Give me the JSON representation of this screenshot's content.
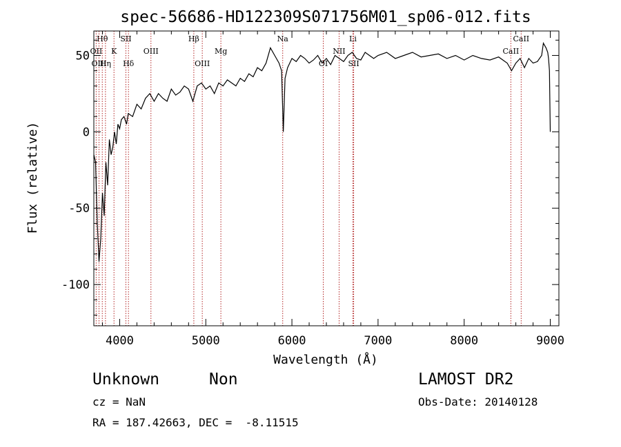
{
  "chart_data": {
    "type": "line",
    "title": "spec-56686-HD122309S071756M01_sp06-012.fits",
    "xlabel": "Wavelength (Å)",
    "ylabel": "Flux (relative)",
    "xlim": [
      3700,
      9100
    ],
    "ylim": [
      -127,
      66
    ],
    "x_ticks": [
      4000,
      5000,
      6000,
      7000,
      8000,
      9000
    ],
    "y_ticks": [
      -100,
      -50,
      0,
      50
    ],
    "grid": false,
    "spectrum": {
      "x": [
        3700,
        3720,
        3740,
        3760,
        3780,
        3800,
        3820,
        3840,
        3860,
        3880,
        3900,
        3920,
        3940,
        3960,
        3980,
        4000,
        4020,
        4050,
        4080,
        4100,
        4150,
        4200,
        4250,
        4300,
        4350,
        4400,
        4450,
        4500,
        4550,
        4600,
        4650,
        4700,
        4750,
        4800,
        4850,
        4900,
        4950,
        5000,
        5050,
        5100,
        5150,
        5200,
        5250,
        5300,
        5350,
        5400,
        5450,
        5500,
        5550,
        5600,
        5650,
        5700,
        5750,
        5800,
        5850,
        5880,
        5900,
        5920,
        5950,
        6000,
        6050,
        6100,
        6150,
        6200,
        6250,
        6300,
        6350,
        6400,
        6450,
        6500,
        6550,
        6600,
        6650,
        6700,
        6750,
        6800,
        6850,
        6900,
        6950,
        7000,
        7100,
        7200,
        7300,
        7400,
        7500,
        7600,
        7700,
        7800,
        7900,
        8000,
        8100,
        8200,
        8300,
        8400,
        8500,
        8550,
        8600,
        8650,
        8700,
        8750,
        8800,
        8850,
        8900,
        8920,
        8950,
        8970,
        8980,
        8990,
        9000
      ],
      "y": [
        -15,
        -20,
        -60,
        -85,
        -70,
        -40,
        -55,
        -20,
        -35,
        -5,
        -15,
        -10,
        0,
        -8,
        5,
        2,
        8,
        10,
        5,
        12,
        10,
        18,
        15,
        22,
        25,
        20,
        25,
        22,
        20,
        28,
        24,
        26,
        30,
        28,
        20,
        30,
        32,
        28,
        30,
        25,
        32,
        30,
        34,
        32,
        30,
        35,
        33,
        38,
        36,
        42,
        40,
        45,
        55,
        50,
        45,
        40,
        0,
        35,
        42,
        48,
        46,
        50,
        48,
        45,
        47,
        50,
        45,
        48,
        44,
        50,
        48,
        46,
        50,
        52,
        48,
        47,
        52,
        50,
        48,
        50,
        52,
        48,
        50,
        52,
        49,
        50,
        51,
        48,
        50,
        47,
        50,
        48,
        47,
        49,
        45,
        40,
        45,
        48,
        42,
        48,
        45,
        46,
        50,
        58,
        55,
        52,
        48,
        40,
        0
      ]
    },
    "lines": [
      {
        "label": "Hθ",
        "x": 3798,
        "row": 0
      },
      {
        "label": "OII",
        "x": 3727,
        "row": 1
      },
      {
        "label": "OIII",
        "x": 3760,
        "row": 2
      },
      {
        "label": "Hη",
        "x": 3835,
        "row": 2
      },
      {
        "label": "K",
        "x": 3934,
        "row": 1
      },
      {
        "label": "SII",
        "x": 4072,
        "row": 0
      },
      {
        "label": "Hδ",
        "x": 4102,
        "row": 2
      },
      {
        "label": "OIII",
        "x": 4363,
        "row": 1
      },
      {
        "label": "Hβ",
        "x": 4861,
        "row": 0
      },
      {
        "label": "OIII",
        "x": 4959,
        "row": 2
      },
      {
        "label": "Mg",
        "x": 5175,
        "row": 1
      },
      {
        "label": "Na",
        "x": 5893,
        "row": 0
      },
      {
        "label": "OI",
        "x": 6364,
        "row": 2
      },
      {
        "label": "NII",
        "x": 6548,
        "row": 1
      },
      {
        "label": "Li",
        "x": 6708,
        "row": 0
      },
      {
        "label": "SII",
        "x": 6717,
        "row": 2
      },
      {
        "label": "CaII",
        "x": 8542,
        "row": 1
      },
      {
        "label": "CaII",
        "x": 8662,
        "row": 0
      }
    ]
  },
  "info": {
    "class_label": "Unknown",
    "subclass_label": "Non",
    "survey": "LAMOST DR2",
    "cz": "cz = NaN",
    "obs_date": "Obs-Date: 20140128",
    "coords": "RA = 187.42663, DEC =  -8.11515"
  }
}
